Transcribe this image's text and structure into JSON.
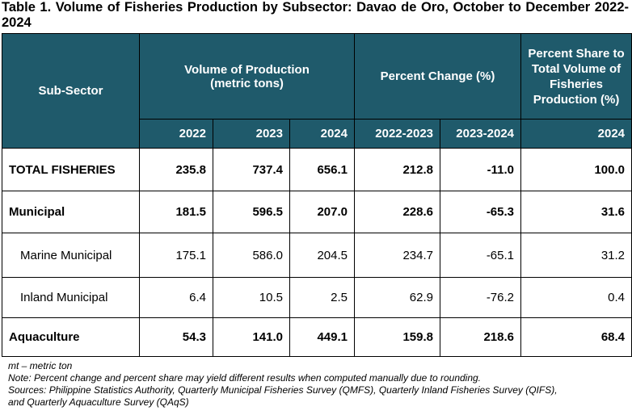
{
  "title": "Table 1. Volume of Fisheries Production by Subsector: Davao de Oro, October to December 2022-2024",
  "headers": {
    "subsector": "Sub-Sector",
    "volume": "Volume of Production (metric tons)",
    "percent_change": "Percent Change (%)",
    "percent_share": "Percent Share to Total Volume of Fisheries Production (%)",
    "years": [
      "2022",
      "2023",
      "2024",
      "2022-2023",
      "2023-2024",
      "2024"
    ]
  },
  "rows": [
    {
      "label": "TOTAL FISHERIES",
      "values": [
        "235.8",
        "737.4",
        "656.1",
        "212.8",
        "-11.0",
        "100.0"
      ]
    },
    {
      "label": "Municipal",
      "values": [
        "181.5",
        "596.5",
        "207.0",
        "228.6",
        "-65.3",
        "31.6"
      ]
    },
    {
      "label": "Marine Municipal",
      "values": [
        "175.1",
        "586.0",
        "204.5",
        "234.7",
        "-65.1",
        "31.2"
      ]
    },
    {
      "label": "Inland Municipal",
      "values": [
        "6.4",
        "10.5",
        "2.5",
        "62.9",
        "-76.2",
        "0.4"
      ]
    },
    {
      "label": "Aquaculture",
      "values": [
        "54.3",
        "141.0",
        "449.1",
        "159.8",
        "218.6",
        "68.4"
      ]
    }
  ],
  "notes": [
    "mt – metric ton",
    "Note: Percent change and percent share may yield different results when computed manually due to rounding.",
    "Sources: Philippine Statistics Authority, Quarterly Municipal Fisheries Survey (QMFS), Quarterly Inland Fisheries Survey (QIFS),",
    "and Quarterly Aquaculture Survey (QAqS)"
  ]
}
